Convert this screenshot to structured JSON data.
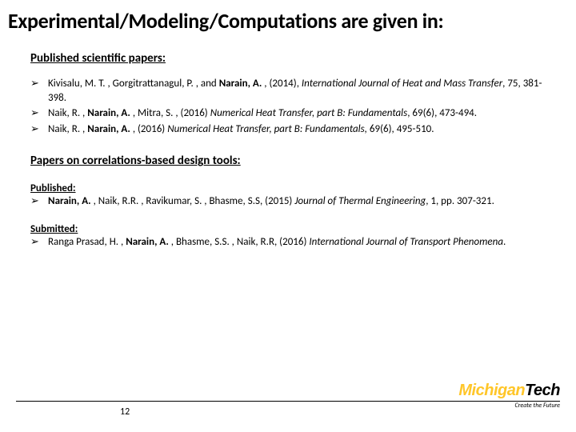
{
  "title": "Experimental/Modeling/Computations are given in:",
  "section1": {
    "heading": "Published scientific papers:",
    "items": [
      {
        "pre": "Kivisalu, M. T. , Gorgitrattanagul, P. , and ",
        "bold1": "Narain, A. ",
        "mid1": ", (2014), ",
        "ital": "International Journal of Heat and Mass Transfer",
        "post": ", 75, 381-398."
      },
      {
        "pre": "Naik, R. , ",
        "bold1": "Narain, A. ",
        "mid1": ", Mitra, S. , (2016) ",
        "ital": "Numerical Heat Transfer, part B: Fundamentals",
        "post": ", 69(6), 473-494."
      },
      {
        "pre": "Naik, R. , ",
        "bold1": "Narain, A. ",
        "mid1": ", (2016) ",
        "ital": "Numerical Heat Transfer, part B: Fundamentals,",
        "post": " 69(6), 495-510."
      }
    ]
  },
  "section2": {
    "heading": "Papers on correlations-based design tools:",
    "sub1": "Published:",
    "items1": [
      {
        "bold1": "Narain, A. ",
        "mid1": ", Naik, R.R. , Ravikumar, S. , Bhasme, S.S, (2015) ",
        "ital": "Journal of Thermal Engineering",
        "post": ", 1, pp. 307-321."
      }
    ],
    "sub2": "Submitted:",
    "items2": [
      {
        "pre": "Ranga Prasad, H. , ",
        "bold1": "Narain, A. ",
        "mid1": ", Bhasme, S.S. , Naik, R.R, (2016) ",
        "ital": "International Journal of Transport Phenomena",
        "post": "."
      }
    ]
  },
  "pageNumber": "12",
  "logo": {
    "part1": "Michigan",
    "part2": "Tech",
    "tagline": "Create the Future"
  },
  "bulletGlyph": "➢",
  "colors": {
    "logoYellow": "#ffc629",
    "text": "#000000",
    "bg": "#ffffff"
  }
}
